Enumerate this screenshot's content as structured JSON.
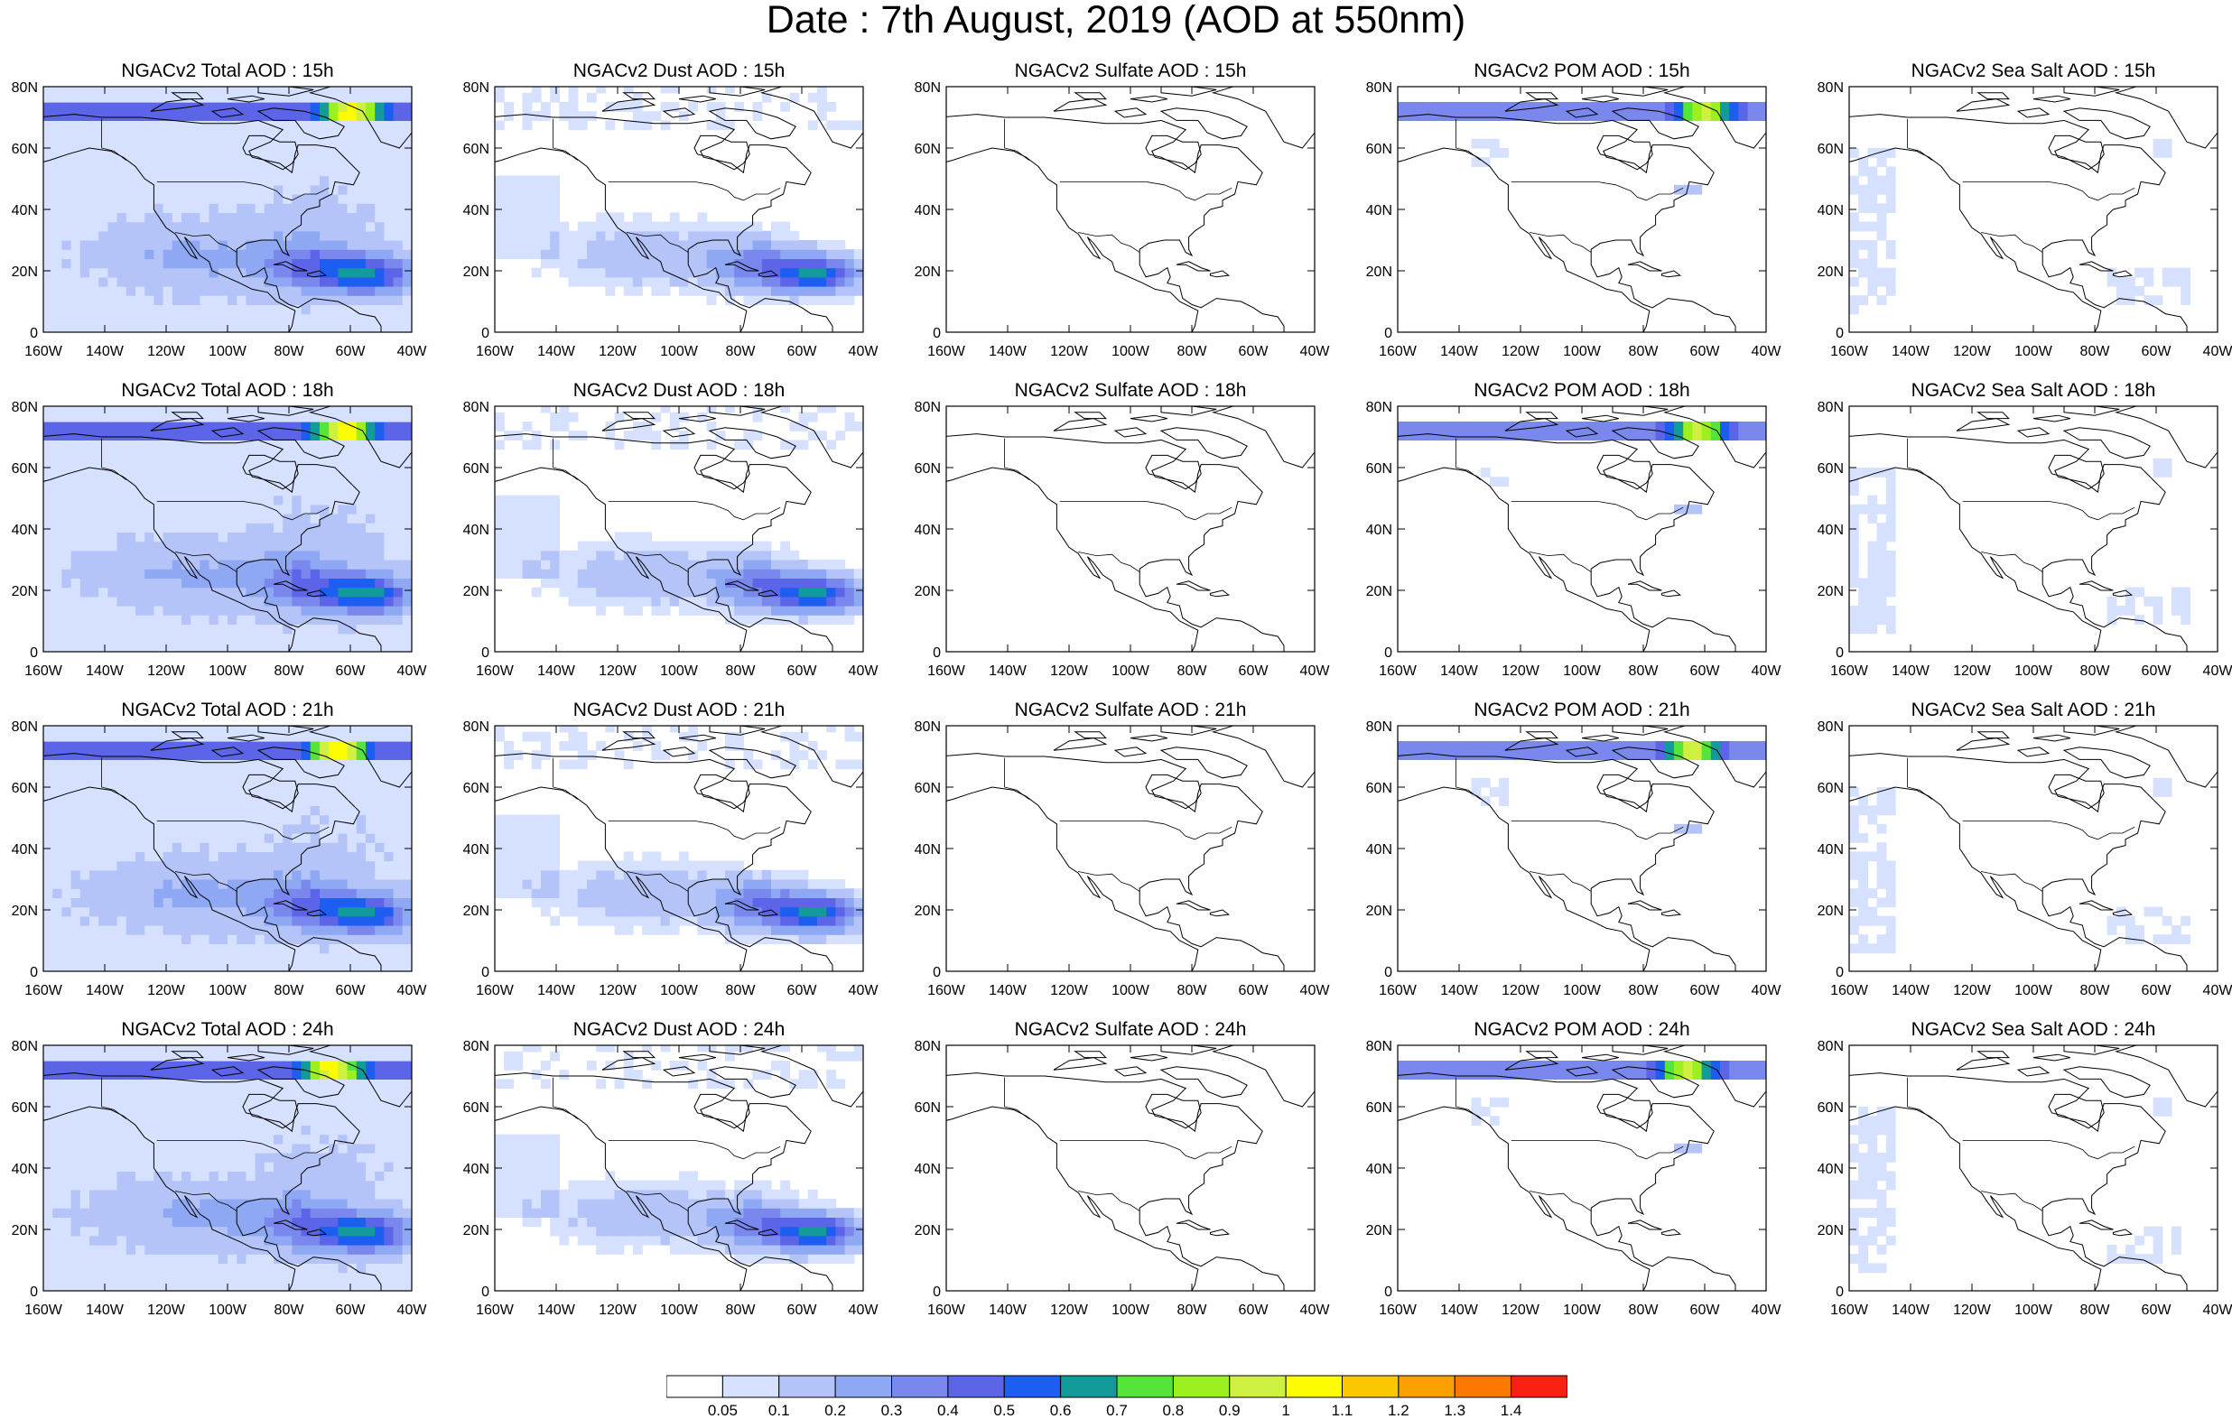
{
  "title": "Date : 7th August, 2019 (AOD at 550nm)",
  "x_ticks": [
    "160W",
    "140W",
    "120W",
    "100W",
    "80W",
    "60W",
    "40W"
  ],
  "x_ticks_seasalt": [
    "160W",
    "140W",
    "120W",
    "100W",
    "80W",
    "60W",
    "40W"
  ],
  "y_ticks": [
    "80N",
    "60N",
    "40N",
    "20N",
    "0"
  ],
  "rows": [
    {
      "hour": "15h",
      "panels": [
        {
          "title": "NGACv2 Total AOD : 15h",
          "kind": "total"
        },
        {
          "title": "NGACv2 Dust AOD : 15h",
          "kind": "dust"
        },
        {
          "title": "NGACv2 Sulfate AOD : 15h",
          "kind": "sulfate"
        },
        {
          "title": "NGACv2 POM AOD : 15h",
          "kind": "pom"
        },
        {
          "title": "NGACv2 Sea Salt AOD : 15h",
          "kind": "seasalt"
        }
      ]
    },
    {
      "hour": "18h",
      "panels": [
        {
          "title": "NGACv2 Total AOD : 18h",
          "kind": "total"
        },
        {
          "title": "NGACv2 Dust AOD : 18h",
          "kind": "dust"
        },
        {
          "title": "NGACv2 Sulfate AOD : 18h",
          "kind": "sulfate"
        },
        {
          "title": "NGACv2 POM AOD : 18h",
          "kind": "pom"
        },
        {
          "title": "NGACv2 Sea Salt AOD : 18h",
          "kind": "seasalt"
        }
      ]
    },
    {
      "hour": "21h",
      "panels": [
        {
          "title": "NGACv2 Total AOD : 21h",
          "kind": "total"
        },
        {
          "title": "NGACv2 Dust AOD : 21h",
          "kind": "dust"
        },
        {
          "title": "NGACv2 Sulfate AOD : 21h",
          "kind": "sulfate"
        },
        {
          "title": "NGACv2 POM AOD : 21h",
          "kind": "pom"
        },
        {
          "title": "NGACv2 Sea Salt AOD : 21h",
          "kind": "seasalt"
        }
      ]
    },
    {
      "hour": "24h",
      "panels": [
        {
          "title": "NGACv2 Total AOD : 24h",
          "kind": "total"
        },
        {
          "title": "NGACv2 Dust AOD : 24h",
          "kind": "dust"
        },
        {
          "title": "NGACv2 Sulfate AOD : 24h",
          "kind": "sulfate"
        },
        {
          "title": "NGACv2 POM AOD : 24h",
          "kind": "pom"
        },
        {
          "title": "NGACv2 Sea Salt  AOD : 24h",
          "kind": "seasalt"
        }
      ]
    }
  ],
  "colorbar": {
    "labels": [
      "0.05",
      "0.1",
      "0.2",
      "0.3",
      "0.4",
      "0.5",
      "0.6",
      "0.7",
      "0.8",
      "0.9",
      "1",
      "1.1",
      "1.2",
      "1.3",
      "1.4"
    ],
    "colors": [
      "#ffffff",
      "#d6e0ff",
      "#b4c4f8",
      "#8ea8f4",
      "#7a88ee",
      "#5c64e8",
      "#1b5ef0",
      "#139a9a",
      "#54e43a",
      "#9cf020",
      "#cef040",
      "#fdfd00",
      "#fbc800",
      "#fba000",
      "#fb7800",
      "#f82010"
    ]
  }
}
